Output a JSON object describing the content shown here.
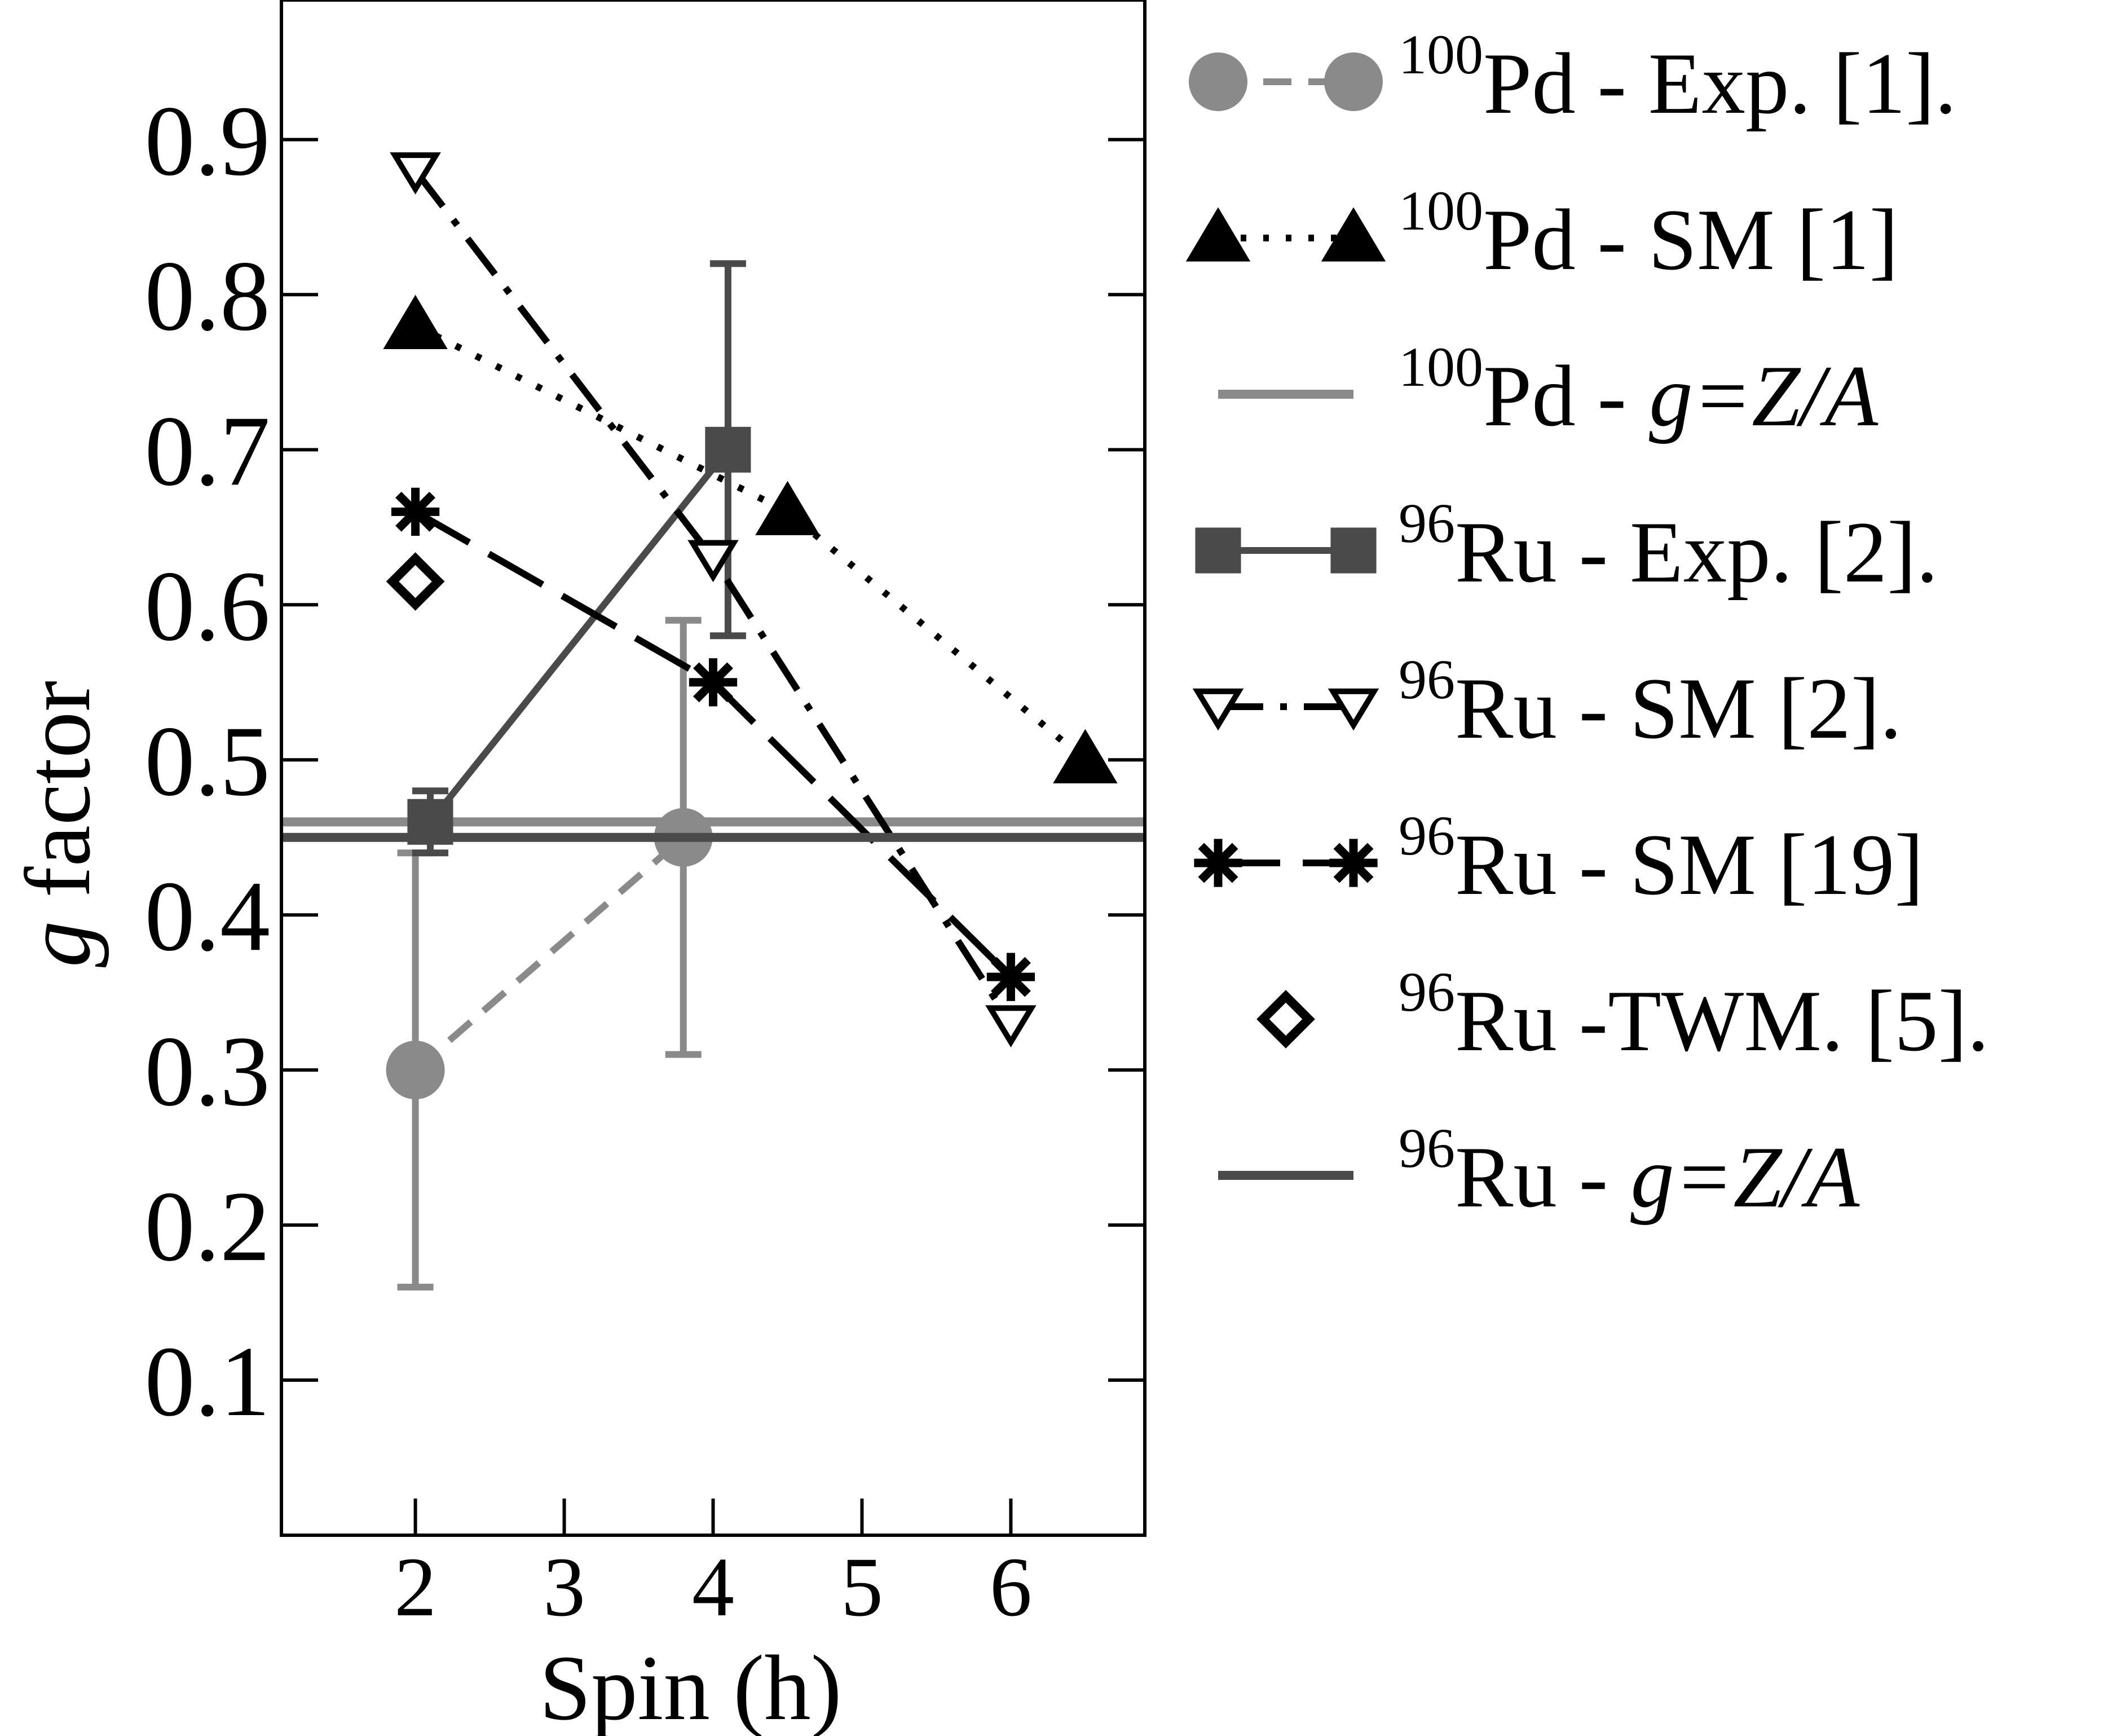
{
  "chart_data": {
    "type": "scatter",
    "xlabel": "Spin (h)",
    "ylabel_italic": "g",
    "ylabel_rest": "factor",
    "xlim": [
      1.1,
      6.9
    ],
    "ylim": [
      0.0,
      0.99
    ],
    "x_ticks": [
      2,
      3,
      4,
      5,
      6
    ],
    "x_tick_labels": [
      "2",
      "3",
      "4",
      "5",
      "6"
    ],
    "y_ticks": [
      0.1,
      0.2,
      0.3,
      0.4,
      0.5,
      0.6,
      0.7,
      0.8,
      0.9
    ],
    "y_tick_labels": [
      "0.1",
      "0.2",
      "0.3",
      "0.4",
      "0.5",
      "0.6",
      "0.7",
      "0.8",
      "0.9"
    ],
    "grid": false,
    "legend_position": "right",
    "series": [
      {
        "name": "Pd - Exp. [1].",
        "sup": "100",
        "color": "#8a8a8a",
        "marker": "circle",
        "line": "dashed",
        "points": [
          {
            "x": 2.0,
            "y": 0.3,
            "err": 0.14
          },
          {
            "x": 3.8,
            "y": 0.45,
            "err": 0.14
          }
        ]
      },
      {
        "name": "Pd - SM [1]",
        "sup": "100",
        "color": "#000000",
        "marker": "triangle",
        "line": "dotted",
        "points": [
          {
            "x": 2.0,
            "y": 0.78
          },
          {
            "x": 4.5,
            "y": 0.66
          },
          {
            "x": 6.5,
            "y": 0.5
          }
        ]
      },
      {
        "name": "Pd -",
        "name_italic": "g=Z/A",
        "sup": "100",
        "color": "#8a8a8a",
        "marker": "none",
        "line": "hline",
        "value": 0.46
      },
      {
        "name": "Ru - Exp. [2].",
        "sup": "96",
        "color": "#4a4a4a",
        "marker": "square",
        "line": "solid",
        "points": [
          {
            "x": 2.1,
            "y": 0.46,
            "err": 0.02
          },
          {
            "x": 4.1,
            "y": 0.7,
            "err": 0.12
          }
        ]
      },
      {
        "name": "Ru - SM [2].",
        "sup": "96",
        "color": "#000000",
        "marker": "triangle-down-open",
        "line": "dashdot",
        "points": [
          {
            "x": 2.0,
            "y": 0.88
          },
          {
            "x": 4.0,
            "y": 0.63
          },
          {
            "x": 6.0,
            "y": 0.33
          }
        ]
      },
      {
        "name": "Ru - SM [19]",
        "sup": "96",
        "color": "#000000",
        "marker": "asterisk",
        "line": "longdash",
        "points": [
          {
            "x": 2.0,
            "y": 0.66
          },
          {
            "x": 4.0,
            "y": 0.55
          },
          {
            "x": 6.0,
            "y": 0.36
          }
        ]
      },
      {
        "name": "Ru -TWM. [5].",
        "sup": "96",
        "color": "#000000",
        "marker": "diamond-open",
        "line": "none",
        "points": [
          {
            "x": 2.0,
            "y": 0.615
          }
        ]
      },
      {
        "name": "Ru -",
        "name_italic": "g=Z/A",
        "sup": "96",
        "color": "#4a4a4a",
        "marker": "none",
        "line": "hline",
        "value": 0.45
      }
    ]
  }
}
